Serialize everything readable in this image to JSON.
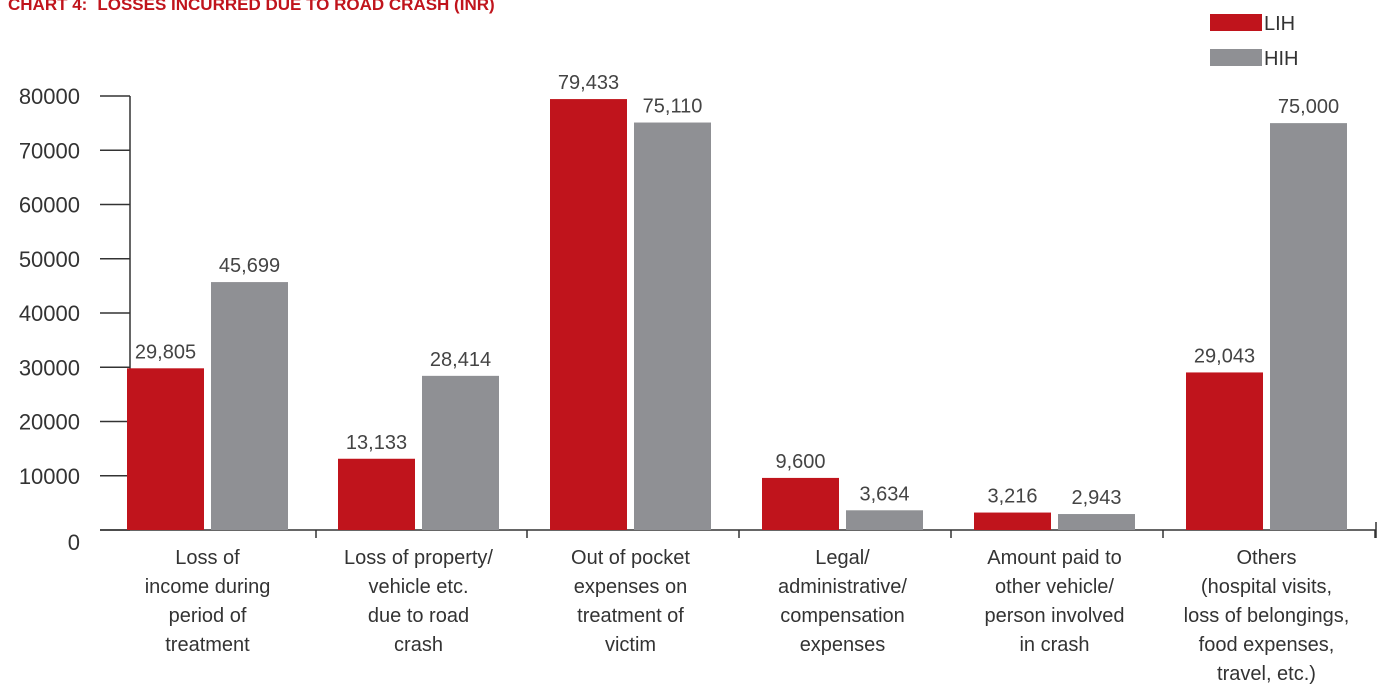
{
  "title": "CHART 4: LOSSES INCURRED DUE TO ROAD CRASH (INR)",
  "title_prefix": "CHART 4:",
  "title_main": "LOSSES INCURRED DUE TO ROAD CRASH (INR)",
  "colors": {
    "LIH": "#c0141c",
    "HIH": "#8f9094",
    "title": "#c0141c"
  },
  "chart_data": {
    "type": "bar",
    "title": "CHART 4: LOSSES INCURRED DUE TO ROAD CRASH (INR)",
    "xlabel": "",
    "ylabel": "",
    "ylim": [
      0,
      80000
    ],
    "yticks": [
      "0",
      "10000",
      "20000",
      "30000",
      "40000",
      "50000",
      "60000",
      "70000",
      "80000"
    ],
    "legend_position": "top-right",
    "grid": false,
    "categories": [
      [
        "Loss of",
        "income during",
        "period of",
        "treatment"
      ],
      [
        "Loss of property/",
        "vehicle etc.",
        "due to road",
        "crash"
      ],
      [
        "Out of pocket",
        "expenses on",
        "treatment of",
        "victim"
      ],
      [
        "Legal/",
        "administrative/",
        "compensation",
        "expenses"
      ],
      [
        "Amount paid to",
        "other vehicle/",
        "person involved",
        "in crash"
      ],
      [
        "Others",
        "(hospital visits,",
        "loss of belongings,",
        "food expenses,",
        "travel, etc.)"
      ]
    ],
    "series": [
      {
        "name": "LIH",
        "values": [
          29805,
          13133,
          79433,
          9600,
          3216,
          29043
        ],
        "labels": [
          "29,805",
          "13,133",
          "79,433",
          "9,600",
          "3,216",
          "29,043"
        ]
      },
      {
        "name": "HIH",
        "values": [
          45699,
          28414,
          75110,
          3634,
          2943,
          75000
        ],
        "labels": [
          "45,699",
          "28,414",
          "75,110",
          "3,634",
          "2,943",
          "75,000"
        ]
      }
    ]
  }
}
